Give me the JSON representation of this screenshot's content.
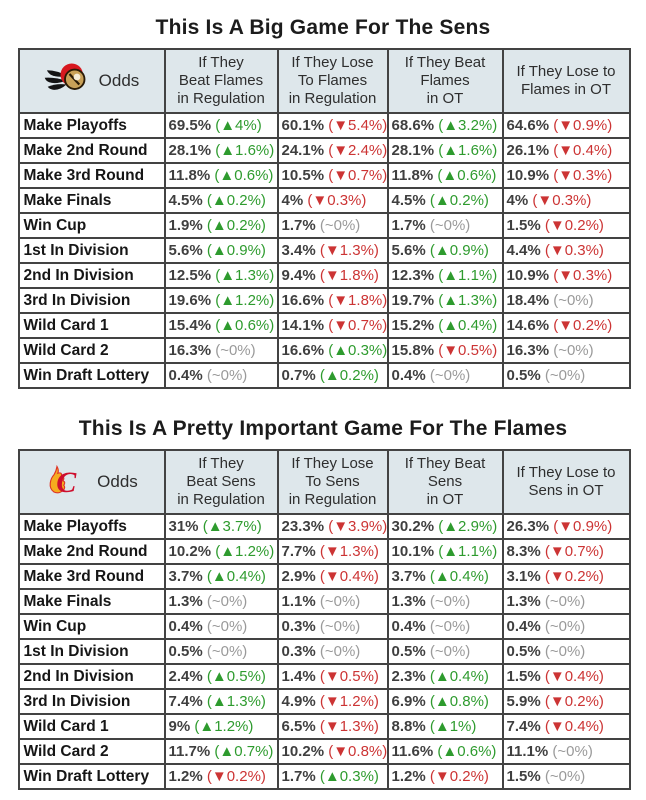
{
  "colors": {
    "up_green": "#2e9b2e",
    "down_red": "#cc3434",
    "neutral_gray": "#9a9a9a",
    "header_bg": "#dee7eb",
    "border": "#434343",
    "sens_red": "#d7181f",
    "sens_gold": "#c9a158",
    "flames_red": "#ce0e2d",
    "flames_yellow": "#f5ac1e"
  },
  "glyphs": {
    "up_arrow": "▲",
    "down_arrow": "▼"
  },
  "chart_data": [
    {
      "type": "table",
      "title": "This Is A Big Game For The Sens",
      "team": "sens",
      "logo": "senators-logo",
      "corner_label": "Odds",
      "column_headers": [
        [
          "If They",
          "Beat Flames",
          "in Regulation"
        ],
        [
          "If They Lose",
          "To Flames",
          "in Regulation"
        ],
        [
          "If They Beat",
          "Flames",
          "in OT"
        ],
        [
          "If They Lose to",
          "Flames in OT"
        ]
      ],
      "rows": [
        {
          "label": "Make Playoffs",
          "cells": [
            {
              "value": "69.5%",
              "change": "4%",
              "direction": "up"
            },
            {
              "value": "60.1%",
              "change": "5.4%",
              "direction": "down"
            },
            {
              "value": "68.6%",
              "change": "3.2%",
              "direction": "up"
            },
            {
              "value": "64.6%",
              "change": "0.9%",
              "direction": "down"
            }
          ]
        },
        {
          "label": "Make 2nd Round",
          "cells": [
            {
              "value": "28.1%",
              "change": "1.6%",
              "direction": "up"
            },
            {
              "value": "24.1%",
              "change": "2.4%",
              "direction": "down"
            },
            {
              "value": "28.1%",
              "change": "1.6%",
              "direction": "up"
            },
            {
              "value": "26.1%",
              "change": "0.4%",
              "direction": "down"
            }
          ]
        },
        {
          "label": "Make 3rd Round",
          "cells": [
            {
              "value": "11.8%",
              "change": "0.6%",
              "direction": "up"
            },
            {
              "value": "10.5%",
              "change": "0.7%",
              "direction": "down"
            },
            {
              "value": "11.8%",
              "change": "0.6%",
              "direction": "up"
            },
            {
              "value": "10.9%",
              "change": "0.3%",
              "direction": "down"
            }
          ]
        },
        {
          "label": "Make Finals",
          "cells": [
            {
              "value": "4.5%",
              "change": "0.2%",
              "direction": "up"
            },
            {
              "value": "4%",
              "change": "0.3%",
              "direction": "down"
            },
            {
              "value": "4.5%",
              "change": "0.2%",
              "direction": "up"
            },
            {
              "value": "4%",
              "change": "0.3%",
              "direction": "down"
            }
          ]
        },
        {
          "label": "Win Cup",
          "cells": [
            {
              "value": "1.9%",
              "change": "0.2%",
              "direction": "up"
            },
            {
              "value": "1.7%",
              "change": "~0%",
              "direction": "none"
            },
            {
              "value": "1.7%",
              "change": "~0%",
              "direction": "none"
            },
            {
              "value": "1.5%",
              "change": "0.2%",
              "direction": "down"
            }
          ]
        },
        {
          "label": "1st In Division",
          "cells": [
            {
              "value": "5.6%",
              "change": "0.9%",
              "direction": "up"
            },
            {
              "value": "3.4%",
              "change": "1.3%",
              "direction": "down"
            },
            {
              "value": "5.6%",
              "change": "0.9%",
              "direction": "up"
            },
            {
              "value": "4.4%",
              "change": "0.3%",
              "direction": "down"
            }
          ]
        },
        {
          "label": "2nd In Division",
          "cells": [
            {
              "value": "12.5%",
              "change": "1.3%",
              "direction": "up"
            },
            {
              "value": "9.4%",
              "change": "1.8%",
              "direction": "down"
            },
            {
              "value": "12.3%",
              "change": "1.1%",
              "direction": "up"
            },
            {
              "value": "10.9%",
              "change": "0.3%",
              "direction": "down"
            }
          ]
        },
        {
          "label": "3rd In Division",
          "cells": [
            {
              "value": "19.6%",
              "change": "1.2%",
              "direction": "up"
            },
            {
              "value": "16.6%",
              "change": "1.8%",
              "direction": "down"
            },
            {
              "value": "19.7%",
              "change": "1.3%",
              "direction": "up"
            },
            {
              "value": "18.4%",
              "change": "~0%",
              "direction": "none"
            }
          ]
        },
        {
          "label": "Wild Card 1",
          "cells": [
            {
              "value": "15.4%",
              "change": "0.6%",
              "direction": "up"
            },
            {
              "value": "14.1%",
              "change": "0.7%",
              "direction": "down"
            },
            {
              "value": "15.2%",
              "change": "0.4%",
              "direction": "up"
            },
            {
              "value": "14.6%",
              "change": "0.2%",
              "direction": "down"
            }
          ]
        },
        {
          "label": "Wild Card 2",
          "cells": [
            {
              "value": "16.3%",
              "change": "~0%",
              "direction": "none"
            },
            {
              "value": "16.6%",
              "change": "0.3%",
              "direction": "up"
            },
            {
              "value": "15.8%",
              "change": "0.5%",
              "direction": "down"
            },
            {
              "value": "16.3%",
              "change": "~0%",
              "direction": "none"
            }
          ]
        },
        {
          "label": "Win Draft Lottery",
          "cells": [
            {
              "value": "0.4%",
              "change": "~0%",
              "direction": "none"
            },
            {
              "value": "0.7%",
              "change": "0.2%",
              "direction": "up"
            },
            {
              "value": "0.4%",
              "change": "~0%",
              "direction": "none"
            },
            {
              "value": "0.5%",
              "change": "~0%",
              "direction": "none"
            }
          ]
        }
      ]
    },
    {
      "type": "table",
      "title": "This Is A Pretty Important Game For The Flames",
      "team": "flames",
      "logo": "flames-logo",
      "corner_label": "Odds",
      "column_headers": [
        [
          "If They",
          "Beat Sens",
          "in Regulation"
        ],
        [
          "If They Lose",
          "To Sens",
          "in Regulation"
        ],
        [
          "If They Beat",
          "Sens",
          "in OT"
        ],
        [
          "If They Lose to",
          "Sens in OT"
        ]
      ],
      "rows": [
        {
          "label": "Make Playoffs",
          "cells": [
            {
              "value": "31%",
              "change": "3.7%",
              "direction": "up"
            },
            {
              "value": "23.3%",
              "change": "3.9%",
              "direction": "down"
            },
            {
              "value": "30.2%",
              "change": "2.9%",
              "direction": "up"
            },
            {
              "value": "26.3%",
              "change": "0.9%",
              "direction": "down"
            }
          ]
        },
        {
          "label": "Make 2nd Round",
          "cells": [
            {
              "value": "10.2%",
              "change": "1.2%",
              "direction": "up"
            },
            {
              "value": "7.7%",
              "change": "1.3%",
              "direction": "down"
            },
            {
              "value": "10.1%",
              "change": "1.1%",
              "direction": "up"
            },
            {
              "value": "8.3%",
              "change": "0.7%",
              "direction": "down"
            }
          ]
        },
        {
          "label": "Make 3rd Round",
          "cells": [
            {
              "value": "3.7%",
              "change": "0.4%",
              "direction": "up"
            },
            {
              "value": "2.9%",
              "change": "0.4%",
              "direction": "down"
            },
            {
              "value": "3.7%",
              "change": "0.4%",
              "direction": "up"
            },
            {
              "value": "3.1%",
              "change": "0.2%",
              "direction": "down"
            }
          ]
        },
        {
          "label": "Make Finals",
          "cells": [
            {
              "value": "1.3%",
              "change": "~0%",
              "direction": "none"
            },
            {
              "value": "1.1%",
              "change": "~0%",
              "direction": "none"
            },
            {
              "value": "1.3%",
              "change": "~0%",
              "direction": "none"
            },
            {
              "value": "1.3%",
              "change": "~0%",
              "direction": "none"
            }
          ]
        },
        {
          "label": "Win Cup",
          "cells": [
            {
              "value": "0.4%",
              "change": "~0%",
              "direction": "none"
            },
            {
              "value": "0.3%",
              "change": "~0%",
              "direction": "none"
            },
            {
              "value": "0.4%",
              "change": "~0%",
              "direction": "none"
            },
            {
              "value": "0.4%",
              "change": "~0%",
              "direction": "none"
            }
          ]
        },
        {
          "label": "1st In Division",
          "cells": [
            {
              "value": "0.5%",
              "change": "~0%",
              "direction": "none"
            },
            {
              "value": "0.3%",
              "change": "~0%",
              "direction": "none"
            },
            {
              "value": "0.5%",
              "change": "~0%",
              "direction": "none"
            },
            {
              "value": "0.5%",
              "change": "~0%",
              "direction": "none"
            }
          ]
        },
        {
          "label": "2nd In Division",
          "cells": [
            {
              "value": "2.4%",
              "change": "0.5%",
              "direction": "up"
            },
            {
              "value": "1.4%",
              "change": "0.5%",
              "direction": "down"
            },
            {
              "value": "2.3%",
              "change": "0.4%",
              "direction": "up"
            },
            {
              "value": "1.5%",
              "change": "0.4%",
              "direction": "down"
            }
          ]
        },
        {
          "label": "3rd In Division",
          "cells": [
            {
              "value": "7.4%",
              "change": "1.3%",
              "direction": "up"
            },
            {
              "value": "4.9%",
              "change": "1.2%",
              "direction": "down"
            },
            {
              "value": "6.9%",
              "change": "0.8%",
              "direction": "up"
            },
            {
              "value": "5.9%",
              "change": "0.2%",
              "direction": "down"
            }
          ]
        },
        {
          "label": "Wild Card 1",
          "cells": [
            {
              "value": "9%",
              "change": "1.2%",
              "direction": "up"
            },
            {
              "value": "6.5%",
              "change": "1.3%",
              "direction": "down"
            },
            {
              "value": "8.8%",
              "change": "1%",
              "direction": "up"
            },
            {
              "value": "7.4%",
              "change": "0.4%",
              "direction": "down"
            }
          ]
        },
        {
          "label": "Wild Card 2",
          "cells": [
            {
              "value": "11.7%",
              "change": "0.7%",
              "direction": "up"
            },
            {
              "value": "10.2%",
              "change": "0.8%",
              "direction": "down"
            },
            {
              "value": "11.6%",
              "change": "0.6%",
              "direction": "up"
            },
            {
              "value": "11.1%",
              "change": "~0%",
              "direction": "none"
            }
          ]
        },
        {
          "label": "Win Draft Lottery",
          "cells": [
            {
              "value": "1.2%",
              "change": "0.2%",
              "direction": "down"
            },
            {
              "value": "1.7%",
              "change": "0.3%",
              "direction": "up"
            },
            {
              "value": "1.2%",
              "change": "0.2%",
              "direction": "down"
            },
            {
              "value": "1.5%",
              "change": "~0%",
              "direction": "none"
            }
          ]
        }
      ]
    }
  ]
}
